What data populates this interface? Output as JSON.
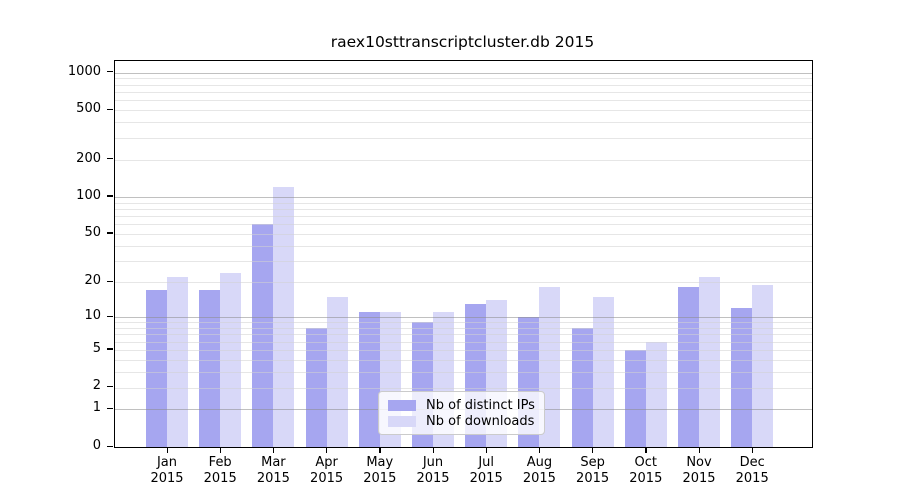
{
  "chart_data": {
    "type": "bar",
    "title": "raex10sttranscriptcluster.db 2015",
    "categories": [
      "Jan",
      "Feb",
      "Mar",
      "Apr",
      "May",
      "Jun",
      "Jul",
      "Aug",
      "Sep",
      "Oct",
      "Nov",
      "Dec"
    ],
    "category_year": "2015",
    "series": [
      {
        "name": "Nb of distinct IPs",
        "color": "#a6a6f0",
        "values": [
          17,
          17,
          60,
          8,
          11,
          9,
          13,
          10,
          8,
          5,
          18,
          12
        ]
      },
      {
        "name": "Nb of downloads",
        "color": "#d8d8f8",
        "values": [
          22,
          24,
          120,
          15,
          11,
          11,
          14,
          18,
          15,
          6,
          22,
          19
        ]
      }
    ],
    "y_axis": {
      "scale": "log10(value+1)",
      "tick_values": [
        0,
        1,
        2,
        5,
        10,
        20,
        50,
        100,
        200,
        500,
        1000
      ],
      "tick_labels": [
        "0",
        "1",
        "2",
        "5",
        "10",
        "20",
        "50",
        "100",
        "200",
        "500",
        "1000"
      ],
      "major_grid_values": [
        1,
        10,
        100,
        1000
      ],
      "range_min": 0,
      "range_max": 1150
    },
    "grid": true,
    "legend_position": "inside-bottom-center",
    "colors": {
      "bar_distinct_ips": "#a6a6f0",
      "bar_downloads": "#d8d8f8",
      "major_gridline": "#8c8c8c",
      "minor_gridline": "#d2d2d2",
      "axis": "#000000",
      "background": "#ffffff"
    }
  }
}
